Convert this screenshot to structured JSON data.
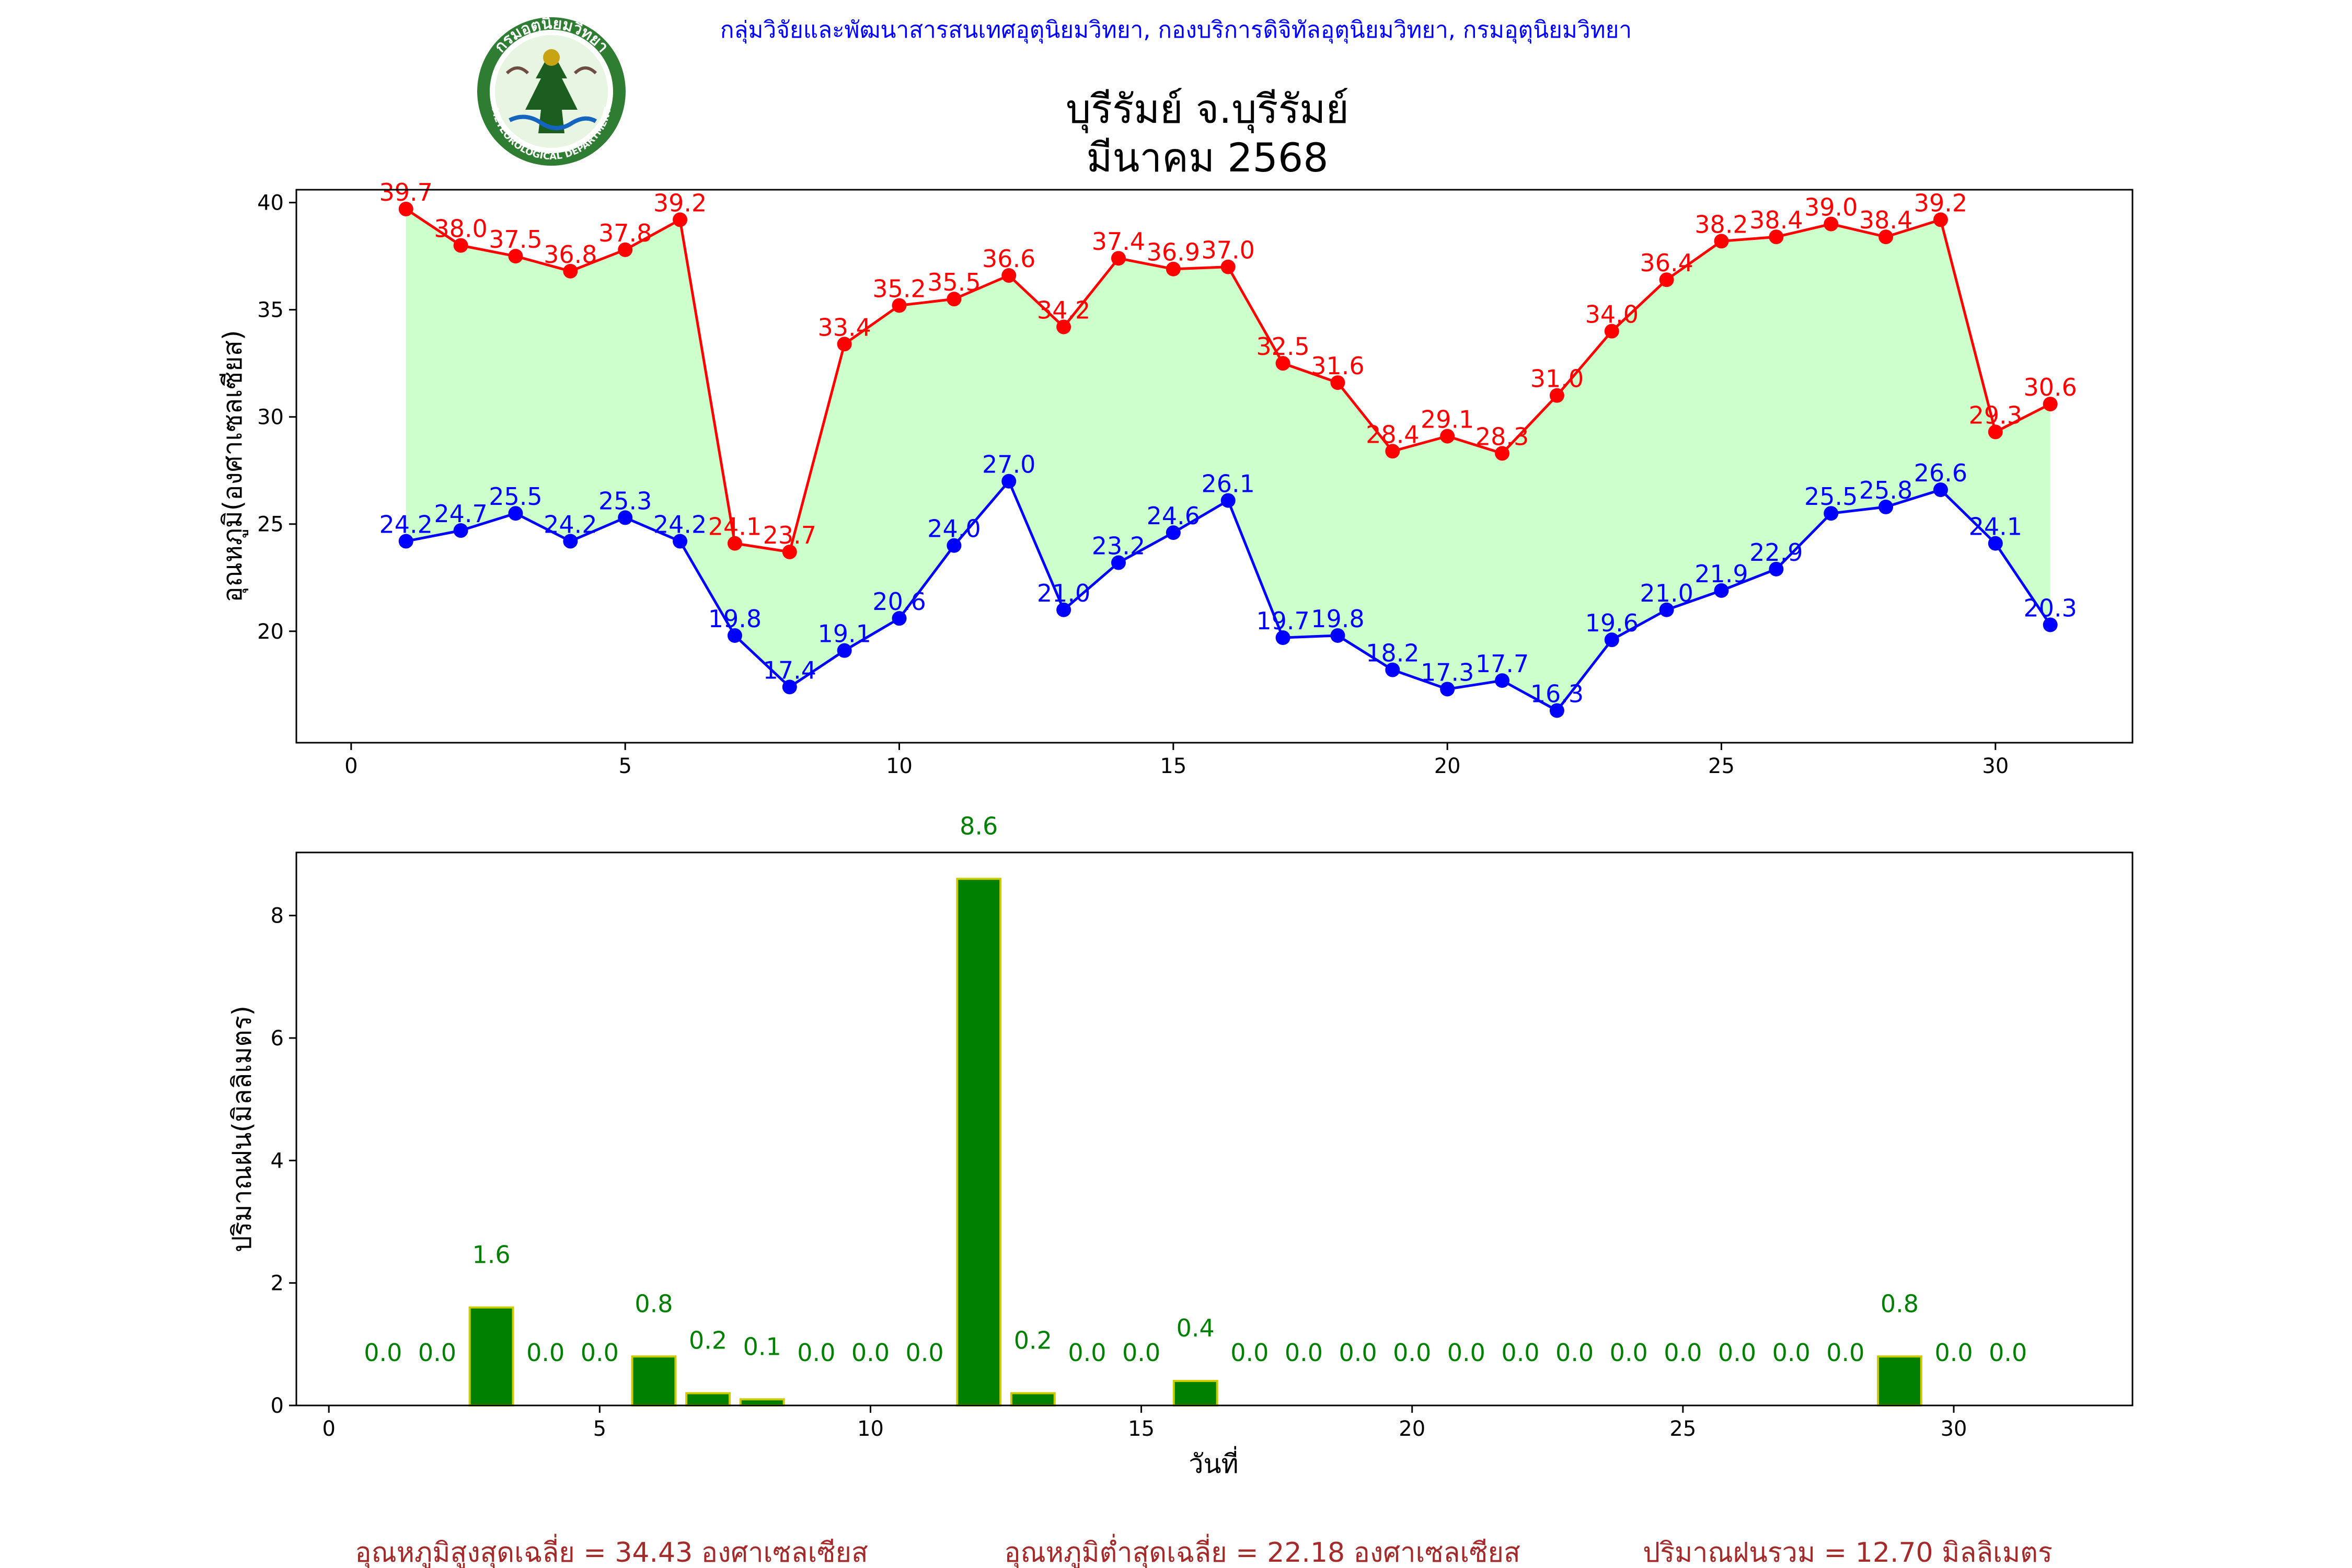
{
  "header": {
    "org_line": "กลุ่มวิจัยและพัฒนาสารสนเทศอุตุนิยมวิทยา, กองบริการดิจิทัลอุตุนิยมวิทยา, กรมอุตุนิยมวิทยา",
    "title_line1": "บุรีรัมย์ จ.บุรีรัมย์",
    "title_line2": "มีนาคม 2568",
    "logo_text": "กรมอุตุนิยมวิทยา",
    "logo_subtext": "METEOROLOGICAL DEPARTMENT"
  },
  "colors": {
    "max_line": "#ff0000",
    "min_line": "#0000ff",
    "fill": "#ccffcc",
    "bar": "#008000",
    "bar_edge": "#cccc00",
    "bar_label": "#008000",
    "org_text": "#0000ff",
    "summary_text": "#a52a2a"
  },
  "chart_data": [
    {
      "type": "line",
      "ylabel": "อุณหภูมิ(องศาเซลเซียส)",
      "x": [
        1,
        2,
        3,
        4,
        5,
        6,
        7,
        8,
        9,
        10,
        11,
        12,
        13,
        14,
        15,
        16,
        17,
        18,
        19,
        20,
        21,
        22,
        23,
        24,
        25,
        26,
        27,
        28,
        29,
        30,
        31
      ],
      "xlim": [
        -1,
        32.5
      ],
      "ylim": [
        14.8,
        40.6
      ],
      "xticks": [
        0,
        5,
        10,
        15,
        20,
        25,
        30
      ],
      "yticks": [
        20,
        25,
        30,
        35,
        40
      ],
      "fill_between": true,
      "series": [
        {
          "key": "max",
          "values": [
            39.7,
            38.0,
            37.5,
            36.8,
            37.8,
            39.2,
            24.1,
            23.7,
            33.4,
            35.2,
            35.5,
            36.6,
            34.2,
            37.4,
            36.9,
            37.0,
            32.5,
            31.6,
            28.4,
            29.1,
            28.3,
            31.0,
            34.0,
            36.4,
            38.2,
            38.4,
            39.0,
            38.4,
            39.2,
            29.3,
            30.6
          ]
        },
        {
          "key": "min",
          "values": [
            24.2,
            24.7,
            25.5,
            24.2,
            25.3,
            24.2,
            19.8,
            17.4,
            19.1,
            20.6,
            24.0,
            27.0,
            21.0,
            23.2,
            24.6,
            26.1,
            19.7,
            19.8,
            18.2,
            17.3,
            17.7,
            16.3,
            19.6,
            21.0,
            21.9,
            22.9,
            25.5,
            25.8,
            26.6,
            24.1,
            20.3
          ]
        }
      ]
    },
    {
      "type": "bar",
      "xlabel": "วันที่",
      "ylabel": "ปริมาณฝน(มิลลิเมตร)",
      "x": [
        1,
        2,
        3,
        4,
        5,
        6,
        7,
        8,
        9,
        10,
        11,
        12,
        13,
        14,
        15,
        16,
        17,
        18,
        19,
        20,
        21,
        22,
        23,
        24,
        25,
        26,
        27,
        28,
        29,
        30,
        31
      ],
      "values": [
        0.0,
        0.0,
        1.6,
        0.0,
        0.0,
        0.8,
        0.2,
        0.1,
        0.0,
        0.0,
        0.0,
        8.6,
        0.2,
        0.0,
        0.0,
        0.4,
        0.0,
        0.0,
        0.0,
        0.0,
        0.0,
        0.0,
        0.0,
        0.0,
        0.0,
        0.0,
        0.0,
        0.0,
        0.8,
        0.0,
        0.0
      ],
      "labels": [
        "0.0",
        "0.0",
        "1.6",
        "0.0",
        "0.0",
        "0.8",
        "0.2",
        "0.1",
        "0.0",
        "0.0",
        "0.0",
        "8.6",
        "0.2",
        "0.0",
        "0.0",
        "0.4",
        "0.0",
        "0.0",
        "0.0",
        "0.0",
        "0.0",
        "0.0",
        "0.0",
        "0.0",
        "0.0",
        "0.0",
        "0.0",
        "0.0",
        "0.8",
        "0.0",
        "0.0"
      ],
      "xlim": [
        -0.6,
        33.3
      ],
      "ylim": [
        0,
        9.03
      ],
      "xticks": [
        0,
        5,
        10,
        15,
        20,
        25,
        30
      ],
      "yticks": [
        0,
        2,
        4,
        6,
        8
      ]
    }
  ],
  "summary": {
    "avg_max": "อุณหภูมิสูงสุดเฉลี่ย = 34.43 องศาเซลเซียส",
    "avg_min": "อุณหภูมิต่ำสุดเฉลี่ย = 22.18 องศาเซลเซียส",
    "total_rain": "ปริมาณฝนรวม = 12.70 มิลลิเมตร"
  }
}
